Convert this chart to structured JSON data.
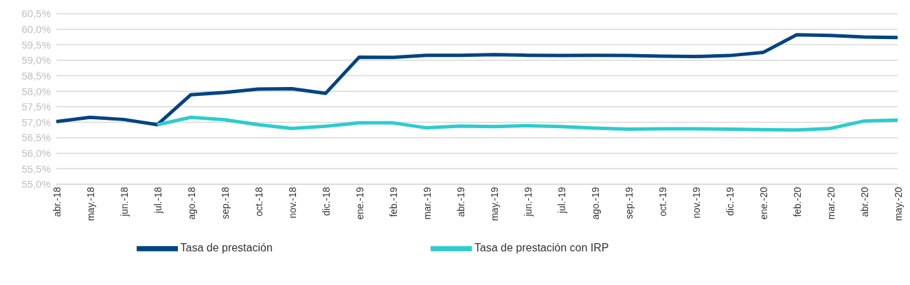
{
  "chart_data": {
    "type": "line",
    "categories": [
      "abr.-18",
      "may.-18",
      "jun.-18",
      "jul.-18",
      "ago.-18",
      "sep.-18",
      "oct.-18",
      "nov.-18",
      "dic.-18",
      "ene.-19",
      "feb.-19",
      "mar.-19",
      "abr.-19",
      "may.-19",
      "jun.-19",
      "jul.-19",
      "ago.-19",
      "sep.-19",
      "oct.-19",
      "nov.-19",
      "dic.-19",
      "ene.-20",
      "feb.-20",
      "mar.-20",
      "abr.-20",
      "may.-20"
    ],
    "series": [
      {
        "name": "Tasa de prestación",
        "color": "#004481",
        "values": [
          57.02,
          57.16,
          57.09,
          56.92,
          57.89,
          57.96,
          58.07,
          58.08,
          57.93,
          59.1,
          59.09,
          59.16,
          59.16,
          59.18,
          59.16,
          59.15,
          59.16,
          59.15,
          59.13,
          59.12,
          59.15,
          59.25,
          59.82,
          59.8,
          59.75,
          59.73
        ]
      },
      {
        "name": "Tasa de prestación con IRP",
        "color": "#2dcccd",
        "values": [
          null,
          null,
          null,
          56.92,
          57.16,
          57.08,
          56.92,
          56.8,
          56.87,
          56.98,
          56.98,
          56.82,
          56.88,
          56.86,
          56.89,
          56.86,
          56.81,
          56.78,
          56.79,
          56.79,
          56.78,
          56.76,
          56.75,
          56.8,
          57.04,
          57.07
        ]
      }
    ],
    "ylim": [
      55,
      60.5
    ],
    "yticks": [
      {
        "value": 55,
        "label": "55,0%"
      },
      {
        "value": 55.5,
        "label": "55,5%"
      },
      {
        "value": 56,
        "label": "56,0%"
      },
      {
        "value": 56.5,
        "label": "56,5%"
      },
      {
        "value": 57,
        "label": "57,0%"
      },
      {
        "value": 57.5,
        "label": "57,5%"
      },
      {
        "value": 58,
        "label": "58,0%"
      },
      {
        "value": 58.5,
        "label": "58,5%"
      },
      {
        "value": 59,
        "label": "59,0%"
      },
      {
        "value": 59.5,
        "label": "59,5%"
      },
      {
        "value": 60,
        "label": "60,0%"
      },
      {
        "value": 60.5,
        "label": "60,5%"
      }
    ],
    "grid": "y",
    "legend": "bottom",
    "marker": "none",
    "line_style": "solid"
  }
}
